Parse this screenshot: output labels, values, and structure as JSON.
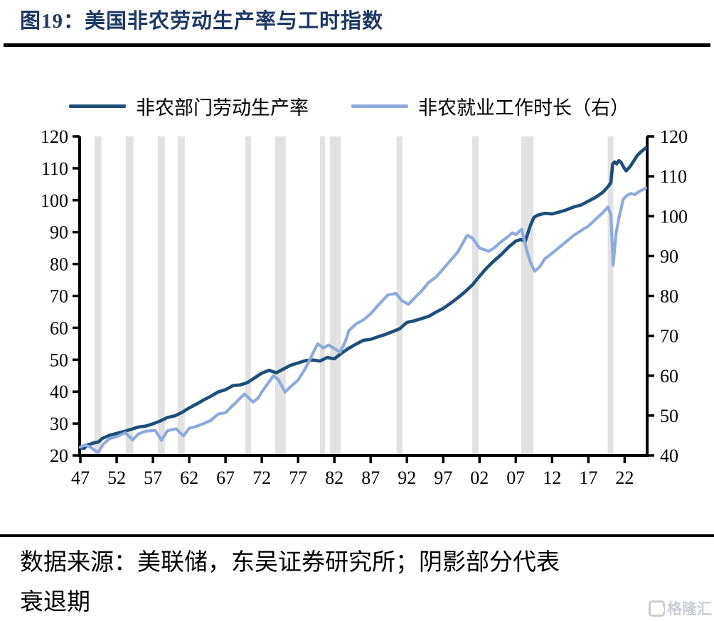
{
  "figure": {
    "title": "图19：美国非农劳动生产率与工时指数",
    "source_line1": "数据来源：美联储，东吴证券研究所；阴影部分代表",
    "source_line2": "衰退期",
    "watermark": "格隆汇"
  },
  "colors": {
    "title": "#1f3864",
    "divider": "#000000",
    "axis": "#000000",
    "recession_band": "#e2e2e2",
    "watermark": "#c9ced4"
  },
  "chart_data": {
    "type": "line",
    "title": "美国非农劳动生产率与工时指数",
    "legend_position": "top",
    "grid": false,
    "x_axis": {
      "range": [
        1946.9,
        2025.1
      ],
      "ticks": [
        {
          "year": 1947,
          "label": "47"
        },
        {
          "year": 1952,
          "label": "52"
        },
        {
          "year": 1957,
          "label": "57"
        },
        {
          "year": 1962,
          "label": "62"
        },
        {
          "year": 1967,
          "label": "67"
        },
        {
          "year": 1972,
          "label": "72"
        },
        {
          "year": 1977,
          "label": "77"
        },
        {
          "year": 1982,
          "label": "82"
        },
        {
          "year": 1987,
          "label": "87"
        },
        {
          "year": 1992,
          "label": "92"
        },
        {
          "year": 1997,
          "label": "97"
        },
        {
          "year": 2002,
          "label": "02"
        },
        {
          "year": 2007,
          "label": "07"
        },
        {
          "year": 2012,
          "label": "12"
        },
        {
          "year": 2017,
          "label": "17"
        },
        {
          "year": 2022,
          "label": "22"
        }
      ]
    },
    "y_axis_left": {
      "range": [
        20,
        120
      ],
      "ticks": [
        120,
        110,
        100,
        90,
        80,
        70,
        60,
        50,
        40,
        30,
        20
      ]
    },
    "y_axis_right": {
      "range": [
        40,
        120
      ],
      "ticks": [
        120,
        110,
        100,
        90,
        80,
        70,
        60,
        50,
        40
      ]
    },
    "recession_bands": [
      [
        1948.93,
        1949.91
      ],
      [
        1953.25,
        1954.3
      ],
      [
        1957.66,
        1958.64
      ],
      [
        1960.4,
        1961.38
      ],
      [
        1969.72,
        1970.5
      ],
      [
        1973.83,
        1975.3
      ],
      [
        1980.02,
        1980.7
      ],
      [
        1981.4,
        1982.87
      ],
      [
        1990.56,
        1991.39
      ],
      [
        2001.0,
        2001.88
      ],
      [
        2007.74,
        2009.43
      ],
      [
        2019.66,
        2020.44
      ]
    ],
    "series": [
      {
        "name": "非农部门劳动生产率",
        "axis": "left",
        "color": "#1f4e79",
        "stroke_width": 4.6,
        "points": [
          [
            1947,
            22.4
          ],
          [
            1947.5,
            22.2
          ],
          [
            1948,
            23.3
          ],
          [
            1949,
            24.0
          ],
          [
            1949.5,
            24.2
          ],
          [
            1950,
            25.3
          ],
          [
            1951,
            26.3
          ],
          [
            1952,
            26.9
          ],
          [
            1953,
            27.5
          ],
          [
            1954,
            28.2
          ],
          [
            1955,
            28.9
          ],
          [
            1956,
            29.2
          ],
          [
            1957,
            29.9
          ],
          [
            1958,
            30.8
          ],
          [
            1959,
            31.9
          ],
          [
            1960,
            32.4
          ],
          [
            1961,
            33.5
          ],
          [
            1962,
            34.9
          ],
          [
            1963,
            36.1
          ],
          [
            1964,
            37.4
          ],
          [
            1965,
            38.6
          ],
          [
            1966,
            39.9
          ],
          [
            1967,
            40.6
          ],
          [
            1968,
            41.9
          ],
          [
            1969,
            42.1
          ],
          [
            1970,
            42.8
          ],
          [
            1971,
            44.3
          ],
          [
            1972,
            45.8
          ],
          [
            1973,
            46.7
          ],
          [
            1974,
            45.9
          ],
          [
            1975,
            47.1
          ],
          [
            1976,
            48.3
          ],
          [
            1977,
            49.0
          ],
          [
            1978,
            49.7
          ],
          [
            1979,
            49.9
          ],
          [
            1980,
            49.6
          ],
          [
            1981,
            50.7
          ],
          [
            1982,
            50.3
          ],
          [
            1983,
            52.1
          ],
          [
            1984,
            53.6
          ],
          [
            1985,
            54.9
          ],
          [
            1986,
            56.1
          ],
          [
            1987,
            56.4
          ],
          [
            1988,
            57.2
          ],
          [
            1989,
            57.9
          ],
          [
            1990,
            58.8
          ],
          [
            1991,
            59.7
          ],
          [
            1992,
            61.7
          ],
          [
            1993,
            62.2
          ],
          [
            1994,
            62.9
          ],
          [
            1995,
            63.6
          ],
          [
            1996,
            64.9
          ],
          [
            1997,
            66.1
          ],
          [
            1998,
            67.7
          ],
          [
            1999,
            69.4
          ],
          [
            2000,
            71.3
          ],
          [
            2001,
            73.4
          ],
          [
            2002,
            76.2
          ],
          [
            2003,
            78.8
          ],
          [
            2004,
            81.0
          ],
          [
            2005,
            83.0
          ],
          [
            2006,
            85.3
          ],
          [
            2007,
            87.2
          ],
          [
            2007.7,
            87.7
          ],
          [
            2008.3,
            87.1
          ],
          [
            2009,
            92.0
          ],
          [
            2009.5,
            94.6
          ],
          [
            2010,
            95.3
          ],
          [
            2011,
            95.9
          ],
          [
            2012,
            95.7
          ],
          [
            2013,
            96.3
          ],
          [
            2014,
            97.0
          ],
          [
            2015,
            97.9
          ],
          [
            2016,
            98.5
          ],
          [
            2017,
            99.7
          ],
          [
            2018,
            100.9
          ],
          [
            2019,
            102.5
          ],
          [
            2019.8,
            104.5
          ],
          [
            2020.1,
            105.6
          ],
          [
            2020.35,
            111.3
          ],
          [
            2020.6,
            112.0
          ],
          [
            2020.9,
            111.4
          ],
          [
            2021.2,
            112.4
          ],
          [
            2021.5,
            111.9
          ],
          [
            2021.8,
            110.6
          ],
          [
            2022.2,
            109.2
          ],
          [
            2022.7,
            110.4
          ],
          [
            2023.2,
            112.1
          ],
          [
            2023.7,
            113.9
          ],
          [
            2024.2,
            115.1
          ],
          [
            2024.9,
            116.4
          ]
        ]
      },
      {
        "name": "非农就业工作时长（右）",
        "axis": "right",
        "color": "#8faadc",
        "stroke_width": 4.2,
        "points": [
          [
            1947,
            42.1
          ],
          [
            1947.6,
            42.6
          ],
          [
            1948.3,
            42.2
          ],
          [
            1949.4,
            40.7
          ],
          [
            1950.2,
            42.9
          ],
          [
            1951,
            44.2
          ],
          [
            1952,
            44.7
          ],
          [
            1953.2,
            45.7
          ],
          [
            1954.2,
            43.9
          ],
          [
            1955,
            45.4
          ],
          [
            1956,
            46.1
          ],
          [
            1957.3,
            46.3
          ],
          [
            1958.2,
            43.8
          ],
          [
            1959,
            46.2
          ],
          [
            1960.2,
            46.7
          ],
          [
            1961.2,
            44.9
          ],
          [
            1962,
            46.8
          ],
          [
            1963,
            47.3
          ],
          [
            1964,
            48.0
          ],
          [
            1965,
            48.8
          ],
          [
            1966,
            50.4
          ],
          [
            1967,
            50.7
          ],
          [
            1968,
            52.5
          ],
          [
            1969.6,
            55.4
          ],
          [
            1970.8,
            53.4
          ],
          [
            1971.5,
            54.4
          ],
          [
            1972,
            55.9
          ],
          [
            1973.6,
            60.0
          ],
          [
            1974.3,
            59.0
          ],
          [
            1975.2,
            55.9
          ],
          [
            1976,
            57.3
          ],
          [
            1977,
            58.9
          ],
          [
            1978,
            61.8
          ],
          [
            1979.7,
            68.0
          ],
          [
            1980.5,
            66.9
          ],
          [
            1981.2,
            67.7
          ],
          [
            1982.8,
            65.9
          ],
          [
            1983.5,
            68.5
          ],
          [
            1984,
            71.3
          ],
          [
            1985,
            73.0
          ],
          [
            1986,
            74.0
          ],
          [
            1987,
            75.5
          ],
          [
            1988,
            77.6
          ],
          [
            1989.4,
            80.3
          ],
          [
            1990.5,
            80.6
          ],
          [
            1991.3,
            78.8
          ],
          [
            1992.2,
            77.9
          ],
          [
            1993,
            79.4
          ],
          [
            1994,
            81.2
          ],
          [
            1995,
            83.4
          ],
          [
            1996,
            84.7
          ],
          [
            1997,
            86.8
          ],
          [
            1998,
            88.9
          ],
          [
            1999,
            91.0
          ],
          [
            2000.3,
            95.2
          ],
          [
            2001,
            94.6
          ],
          [
            2002,
            92.0
          ],
          [
            2003.3,
            91.2
          ],
          [
            2004,
            92.0
          ],
          [
            2005,
            93.6
          ],
          [
            2006,
            95.0
          ],
          [
            2006.5,
            95.8
          ],
          [
            2007,
            95.4
          ],
          [
            2007.8,
            96.7
          ],
          [
            2008.5,
            91.5
          ],
          [
            2009,
            88.5
          ],
          [
            2009.6,
            86.2
          ],
          [
            2010.3,
            87.3
          ],
          [
            2011,
            89.3
          ],
          [
            2012,
            90.7
          ],
          [
            2013,
            92.2
          ],
          [
            2014,
            93.7
          ],
          [
            2015,
            95.2
          ],
          [
            2016,
            96.4
          ],
          [
            2017,
            97.5
          ],
          [
            2018,
            99.2
          ],
          [
            2019,
            100.9
          ],
          [
            2019.7,
            102.3
          ],
          [
            2020.1,
            100.3
          ],
          [
            2020.42,
            87.7
          ],
          [
            2020.8,
            95.5
          ],
          [
            2021.2,
            99.5
          ],
          [
            2021.8,
            104.2
          ],
          [
            2022.3,
            105.2
          ],
          [
            2022.9,
            105.7
          ],
          [
            2023.4,
            105.4
          ],
          [
            2024,
            106.2
          ],
          [
            2024.9,
            107.0
          ]
        ]
      }
    ]
  }
}
